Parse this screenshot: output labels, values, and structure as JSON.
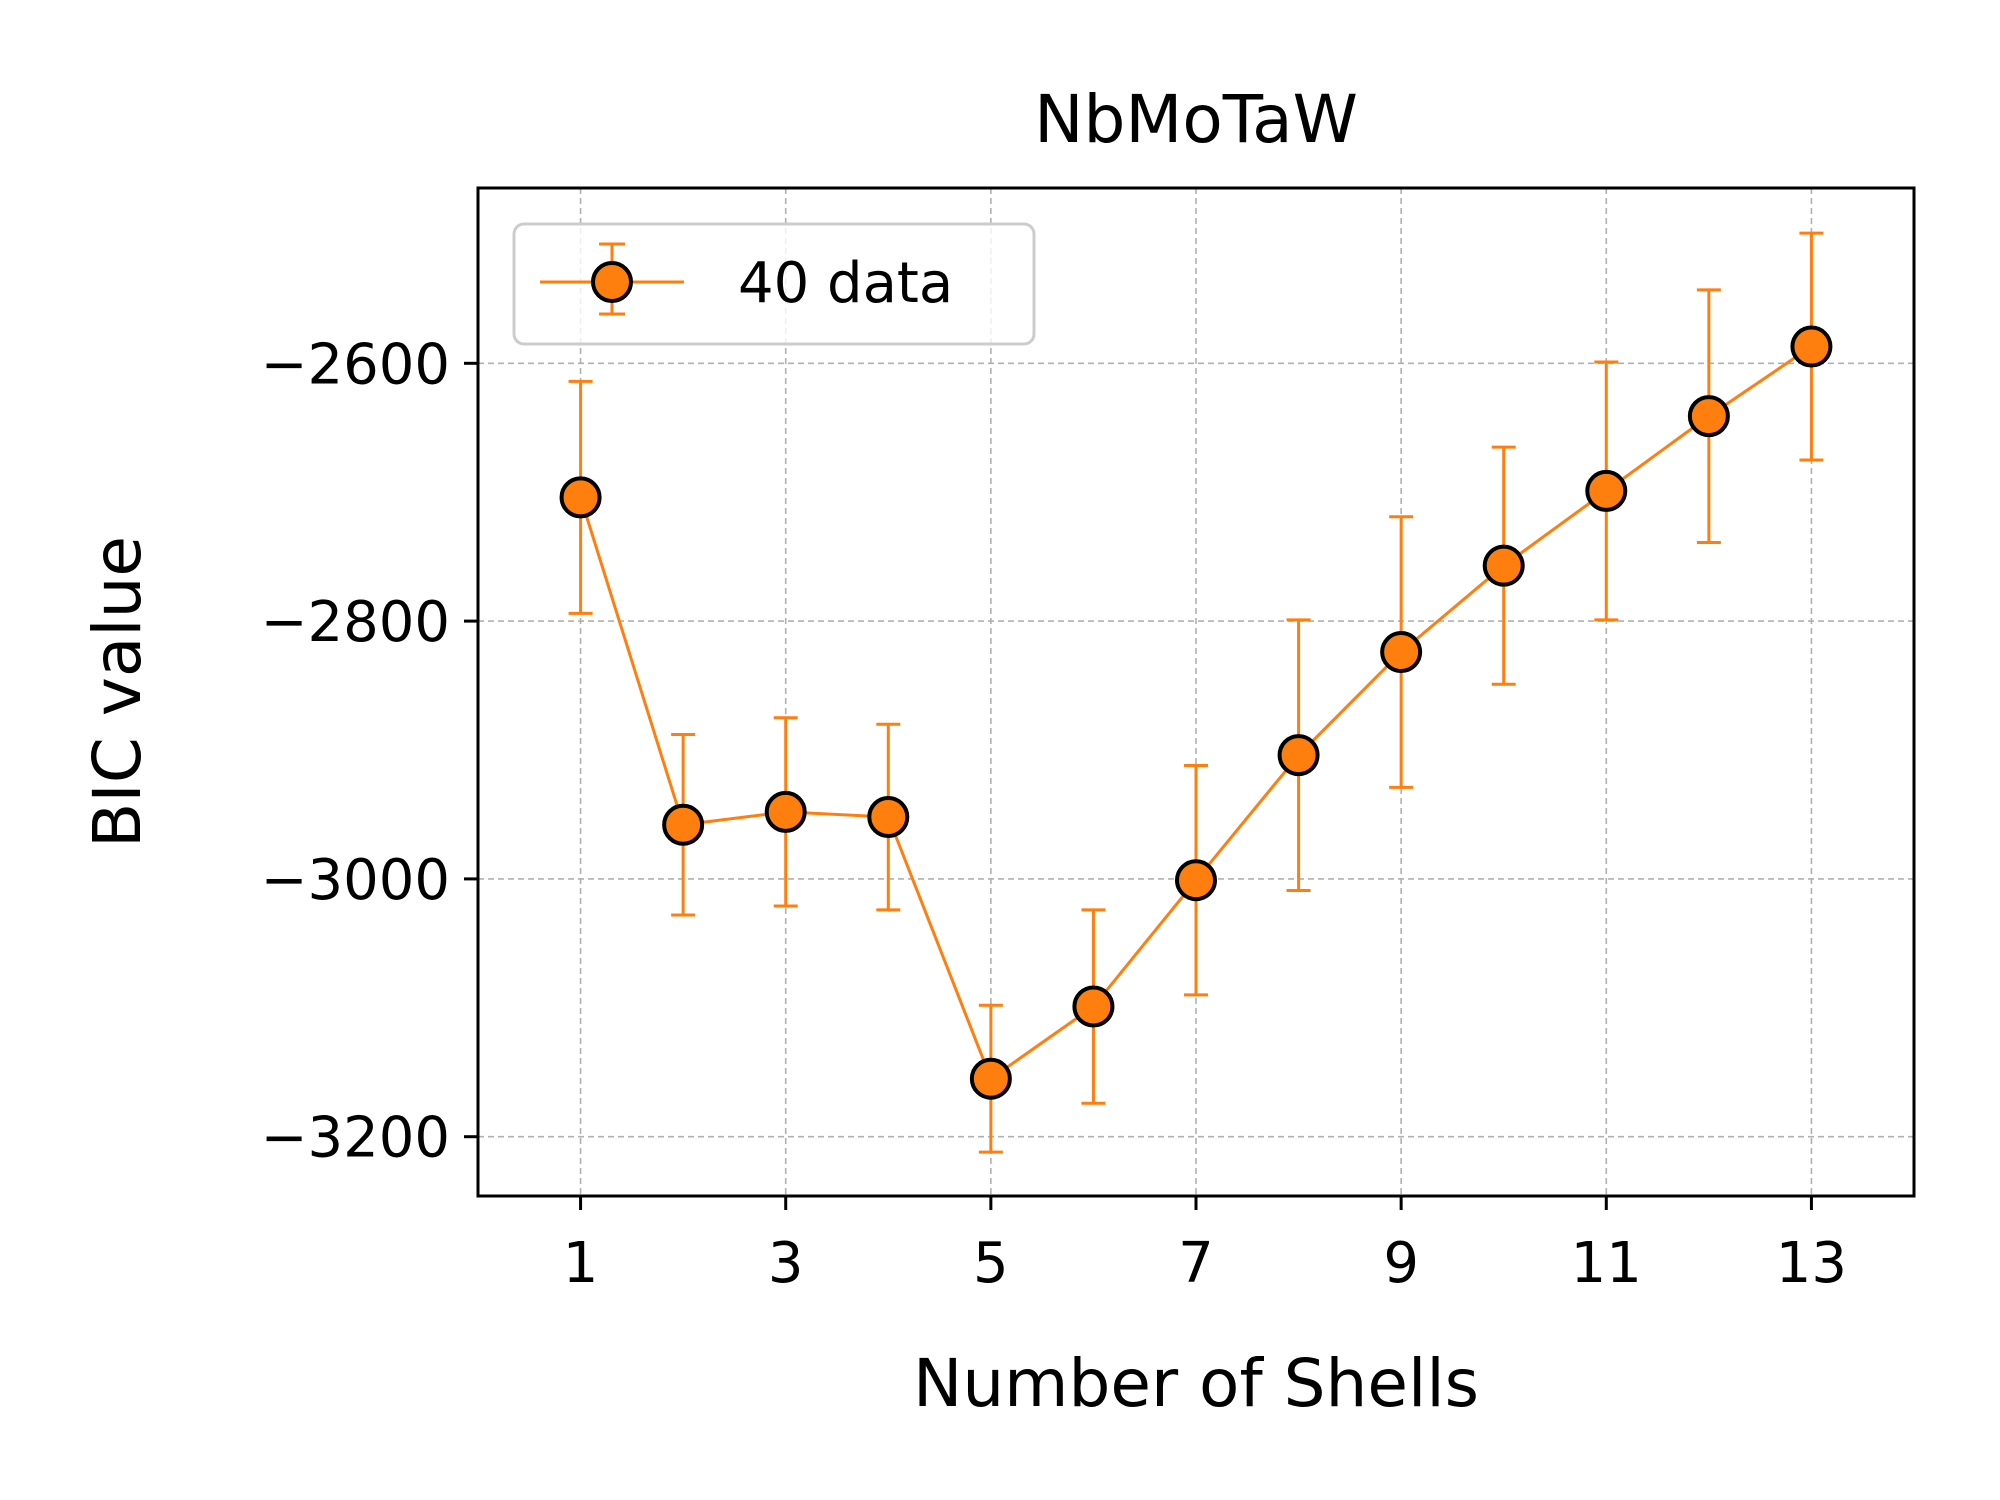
{
  "chart_data": {
    "type": "line",
    "title": "NbMoTaW",
    "xlabel": "Number of Shells",
    "ylabel": "BIC value",
    "xlim": [
      0,
      14
    ],
    "ylim": [
      -3246,
      -2464
    ],
    "xticks": [
      1,
      3,
      5,
      7,
      9,
      11,
      13
    ],
    "xtick_labels": [
      "1",
      "3",
      "5",
      "7",
      "9",
      "11",
      "13"
    ],
    "yticks": [
      -2600,
      -2800,
      -3000,
      -3200
    ],
    "ytick_labels": [
      "−2600",
      "−2800",
      "−3000",
      "−3200"
    ],
    "grid": true,
    "legend_position": "top-left",
    "series": [
      {
        "name": "40 data",
        "color": "#ff7f0e",
        "marker_edge_color": "#000000",
        "x": [
          1,
          2,
          3,
          4,
          5,
          6,
          7,
          8,
          9,
          10,
          11,
          12,
          13
        ],
        "y": [
          -2704,
          -2958,
          -2948,
          -2952,
          -3155,
          -3099,
          -3001,
          -2904,
          -2824,
          -2757,
          -2699,
          -2641,
          -2587
        ],
        "error": [
          90,
          70,
          73,
          72,
          57,
          75,
          89,
          105,
          105,
          92,
          100,
          98,
          88
        ]
      }
    ]
  }
}
